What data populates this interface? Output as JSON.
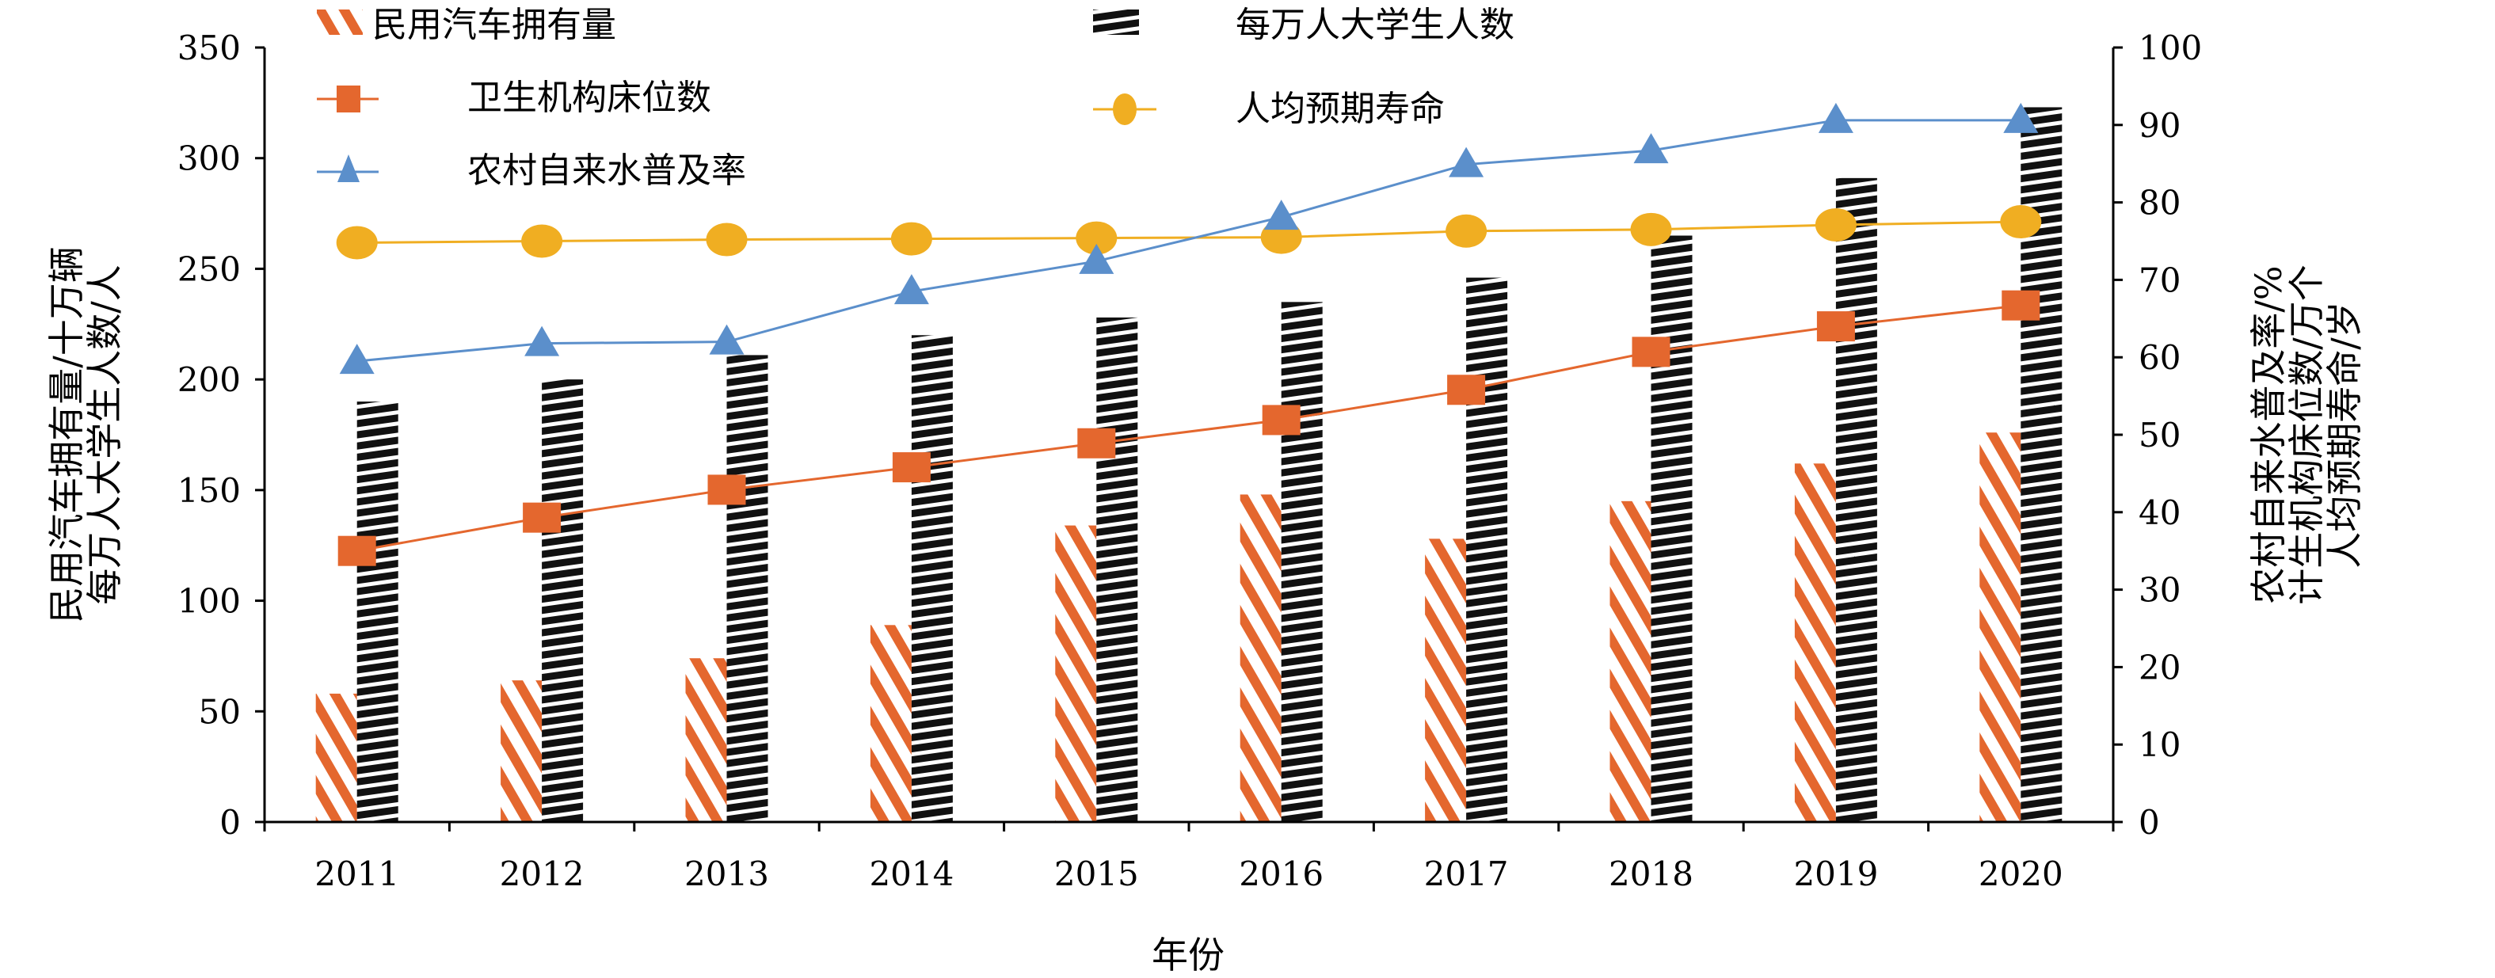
{
  "chart_data": {
    "type": "bar+line",
    "categories": [
      "2011",
      "2012",
      "2013",
      "2014",
      "2015",
      "2016",
      "2017",
      "2018",
      "2019",
      "2020"
    ],
    "xlabel": "年份",
    "ylabel_left": [
      "民用汽车拥有量/十万辆",
      "每万人大学生人数/人"
    ],
    "ylabel_right": [
      "农村自来水普及率/%",
      "计生机构床位数/万个",
      "人均预期寿命/岁"
    ],
    "ylim_left": [
      0,
      350
    ],
    "yticks_left": [
      0,
      50,
      100,
      150,
      200,
      250,
      300,
      350
    ],
    "ylim_right": [
      0,
      100
    ],
    "yticks_right": [
      0,
      10,
      20,
      30,
      40,
      50,
      60,
      70,
      80,
      90,
      100
    ],
    "grid": false,
    "legend_position": "top",
    "bar_series": [
      {
        "name": "民用汽车拥有量",
        "axis": "left",
        "color": "#E4672E",
        "pattern": "diagonal-stripes",
        "values": [
          58,
          64,
          74,
          89,
          134,
          148,
          128,
          145,
          162,
          176
        ]
      },
      {
        "name": "每万人大学生人数",
        "axis": "left",
        "color": "#111111",
        "pattern": "horizontal-stripes",
        "values": [
          190,
          200,
          211,
          220,
          228,
          235,
          246,
          265,
          291,
          323
        ]
      }
    ],
    "line_series": [
      {
        "name": "卫生机构床位数",
        "axis": "right",
        "color": "#E4672E",
        "marker": "square",
        "values": [
          35.0,
          39.3,
          42.9,
          45.8,
          48.9,
          51.9,
          55.8,
          60.7,
          64.0,
          66.7
        ]
      },
      {
        "name": "人均预期寿命",
        "axis": "right",
        "color": "#F0AE22",
        "marker": "circle",
        "values": [
          74.8,
          75.0,
          75.2,
          75.3,
          75.4,
          75.5,
          76.3,
          76.5,
          77.1,
          77.5
        ]
      },
      {
        "name": "农村自来水普及率",
        "axis": "right",
        "color": "#5B8FCB",
        "marker": "triangle",
        "values": [
          59.5,
          61.8,
          62.0,
          68.5,
          72.4,
          78.1,
          84.9,
          86.7,
          90.6,
          90.6
        ]
      }
    ]
  }
}
